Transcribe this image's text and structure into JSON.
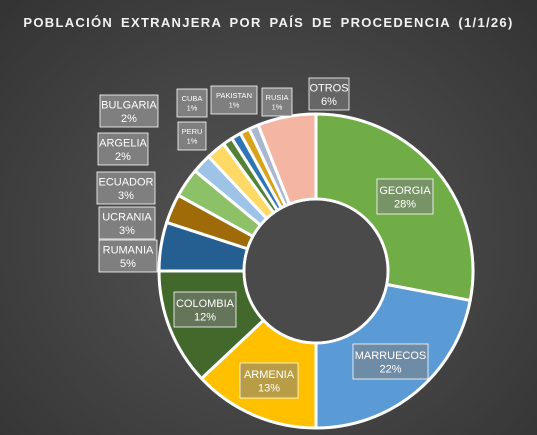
{
  "chart_data": {
    "type": "pie",
    "title": "POBLACIÓN  EXTRANJERA  POR PAÍS DE PROCEDENCIA  (1/1/26)",
    "slices": [
      {
        "name": "GEORGIA",
        "value": 28,
        "label": "28%",
        "color": "#70ad47"
      },
      {
        "name": "MARRUECOS",
        "value": 22,
        "label": "22%",
        "color": "#5b9bd5"
      },
      {
        "name": "ARMENIA",
        "value": 13,
        "label": "13%",
        "color": "#ffc000"
      },
      {
        "name": "COLOMBIA",
        "value": 12,
        "label": "12%",
        "color": "#43682b"
      },
      {
        "name": "RUMANIA",
        "value": 5,
        "label": "5%",
        "color": "#255e91"
      },
      {
        "name": "UCRANIA",
        "value": 3,
        "label": "3%",
        "color": "#9e6b08"
      },
      {
        "name": "ECUADOR",
        "value": 3,
        "label": "3%",
        "color": "#8cc168"
      },
      {
        "name": "ARGELIA",
        "value": 2,
        "label": "2%",
        "color": "#9dc3e6"
      },
      {
        "name": "BULGARIA",
        "value": 2,
        "label": "2%",
        "color": "#ffd966"
      },
      {
        "name": "PERU",
        "value": 1,
        "label": "1%",
        "color": "#548235"
      },
      {
        "name": "CUBA",
        "value": 1,
        "label": "1%",
        "color": "#2e75b6"
      },
      {
        "name": "PAKISTAN",
        "value": 1,
        "label": "1%",
        "color": "#d9a21b"
      },
      {
        "name": "RUSIA",
        "value": 1,
        "label": "1%",
        "color": "#a9b7d0"
      },
      {
        "name": "OTROS",
        "value": 6,
        "label": "6%",
        "color": "#f4b6a3"
      }
    ],
    "inner_label_names": [
      "GEORGIA",
      "MARRUECOS",
      "ARMENIA",
      "COLOMBIA",
      "OTROS"
    ]
  }
}
